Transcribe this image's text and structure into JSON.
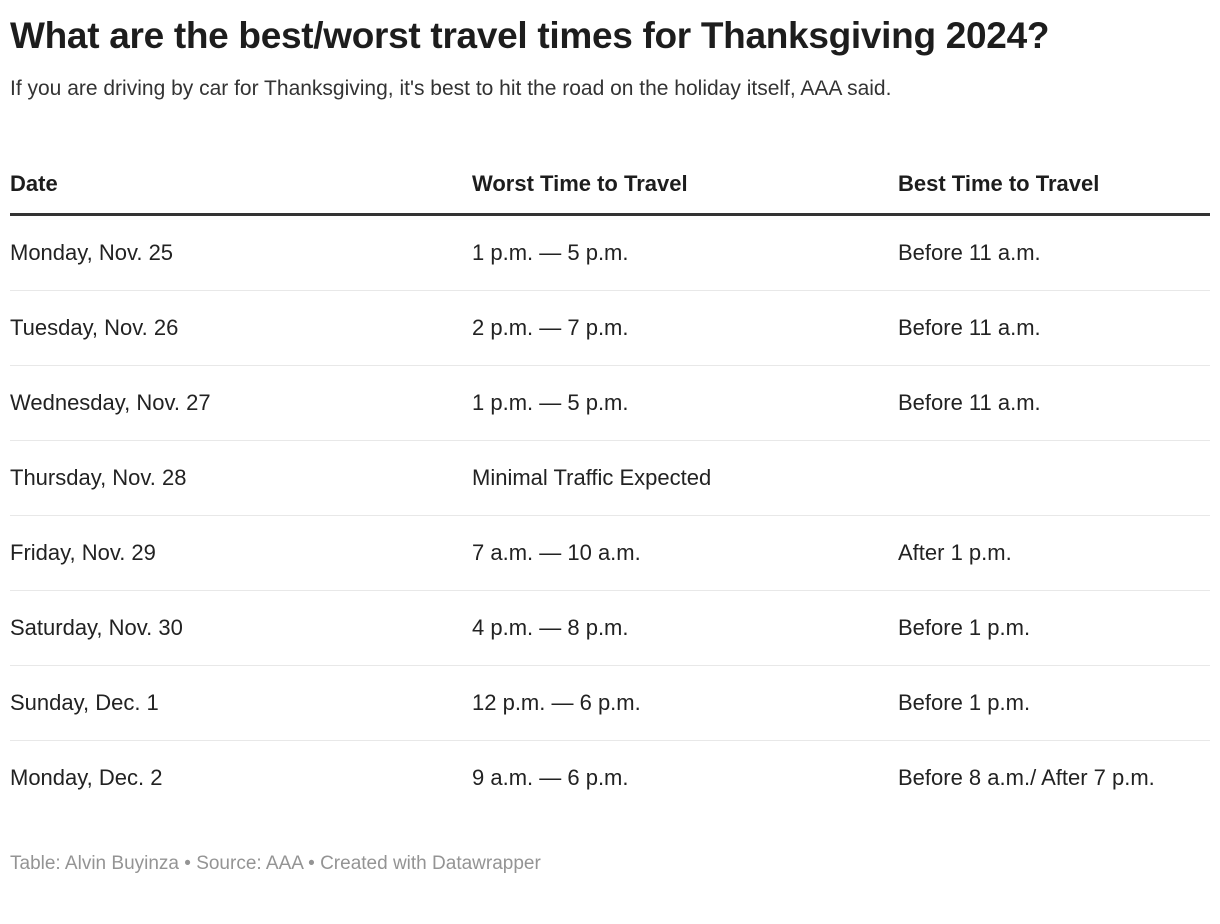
{
  "chart_data": {
    "type": "table",
    "title": "What are the best/worst travel times for Thanksgiving 2024?",
    "subtitle": "If you are driving by car for Thanksgiving, it's best to hit the road on the holiday itself, AAA said.",
    "columns": [
      "Date",
      "Worst Time to Travel",
      "Best Time to Travel"
    ],
    "rows": [
      {
        "date": "Monday, Nov. 25",
        "worst": "1 p.m. — 5 p.m.",
        "best": "Before 11 a.m."
      },
      {
        "date": "Tuesday, Nov. 26",
        "worst": "2 p.m. — 7 p.m.",
        "best": "Before 11 a.m."
      },
      {
        "date": "Wednesday, Nov. 27",
        "worst": "1 p.m. — 5 p.m.",
        "best": "Before 11 a.m."
      },
      {
        "date": "Thursday, Nov. 28",
        "worst": "Minimal Traffic Expected",
        "best": ""
      },
      {
        "date": "Friday, Nov. 29",
        "worst": "7 a.m. — 10 a.m.",
        "best": "After 1 p.m."
      },
      {
        "date": "Saturday, Nov. 30",
        "worst": "4 p.m. — 8 p.m.",
        "best": "Before 1 p.m."
      },
      {
        "date": "Sunday, Dec. 1",
        "worst": "12 p.m. — 6 p.m.",
        "best": "Before 1 p.m."
      },
      {
        "date": "Monday, Dec. 2",
        "worst": "9 a.m. — 6 p.m.",
        "best": "Before 8 a.m./ After 7 p.m."
      }
    ],
    "footer": "Table: Alvin Buyinza • Source: AAA • Created with Datawrapper",
    "layout_hints": {
      "grid": "horizontal row dividers only",
      "header_rule": "thick dark line under column headers"
    }
  },
  "colors": {
    "title_text": "#1d1d1d",
    "body_text": "#222222",
    "subtitle_text": "#333333",
    "header_rule": "#333333",
    "row_divider": "#e8e8e8",
    "footer_text": "#949494",
    "background": "#ffffff"
  }
}
